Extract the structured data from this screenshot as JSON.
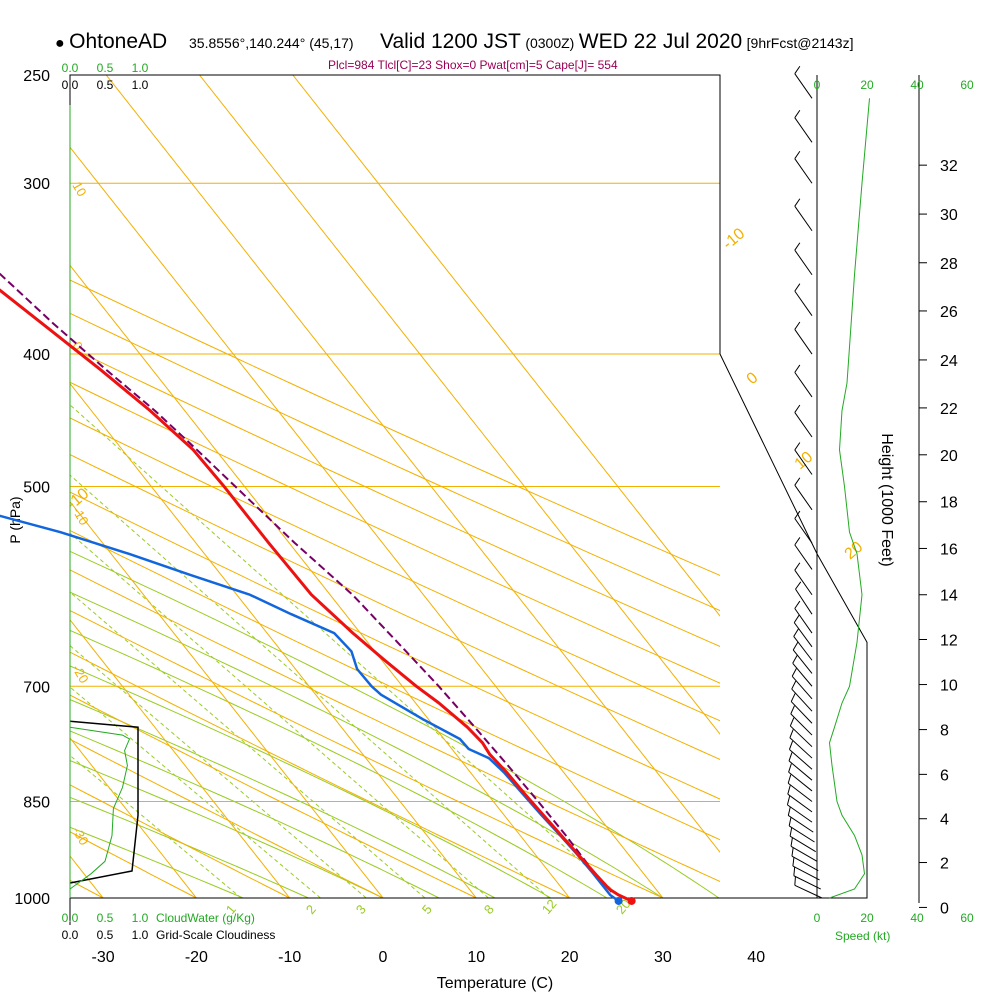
{
  "header": {
    "station": "OhtoneAD",
    "coords": "35.8556°,140.244° (45,17)",
    "valid_prefix": "Valid 1200 JST",
    "valid_utc": "(0300Z)",
    "valid_date": "WED 22 Jul 2020",
    "forecast": "[9hrFcst@2143z]",
    "indices": "Plcl=984 Tlcl[C]=23 Shox=0 Pwat[cm]=5 Cape[J]= 554"
  },
  "colors": {
    "temperature": "#ee1111",
    "dewpoint": "#1166dd",
    "parcel": "#770066",
    "isobar": "#f2b000",
    "dry_adiabat": "#f2b000",
    "moist_adiabat": "#99cc22",
    "mixing_ratio": "#99cc22",
    "cloud": "#22aa22",
    "indices_text": "#990055"
  },
  "chart_data": {
    "type": "skewt",
    "title": "OhtoneAD Valid 1200 JST (0300Z) WED 22 Jul 2020",
    "xlabel": "Temperature (C)",
    "ylabel": "P (hPa)",
    "x_ticks": [
      -30,
      -20,
      -10,
      0,
      10,
      20,
      30,
      40
    ],
    "p_ticks": [
      250,
      300,
      400,
      500,
      700,
      850,
      1000
    ],
    "height_axis": {
      "label": "Height (1000 Feet)",
      "ticks": [
        0,
        2,
        4,
        6,
        8,
        10,
        12,
        14,
        16,
        18,
        20,
        22,
        24,
        26,
        28,
        30,
        32
      ],
      "p_at_tick": [
        1016,
        942,
        875,
        812,
        753,
        698,
        647,
        600,
        555,
        513,
        474,
        438,
        404,
        372,
        343,
        316,
        291
      ]
    },
    "temperature": {
      "name": "Temperature",
      "points": [
        [
          1005,
          26.4
        ],
        [
          995,
          25.5
        ],
        [
          985,
          25.0
        ],
        [
          960,
          24.8
        ],
        [
          930,
          24.6
        ],
        [
          900,
          24.4
        ],
        [
          870,
          24.2
        ],
        [
          840,
          24.0
        ],
        [
          810,
          23.9
        ],
        [
          785,
          23.6
        ],
        [
          770,
          23.8
        ],
        [
          750,
          23.5
        ],
        [
          720,
          22.5
        ],
        [
          700,
          21.5
        ],
        [
          670,
          20.3
        ],
        [
          640,
          19.2
        ],
        [
          600,
          18.0
        ],
        [
          550,
          17.8
        ],
        [
          500,
          17.8
        ],
        [
          470,
          17.6
        ],
        [
          440,
          16.3
        ],
        [
          410,
          14.4
        ],
        [
          380,
          12.1
        ],
        [
          350,
          9.6
        ],
        [
          320,
          7.1
        ],
        [
          300,
          5.2
        ],
        [
          280,
          3.1
        ],
        [
          265,
          1.9
        ]
      ]
    },
    "dewpoint": {
      "name": "Dewpoint",
      "points": [
        [
          1005,
          25.0
        ],
        [
          995,
          24.6
        ],
        [
          960,
          24.6
        ],
        [
          930,
          24.5
        ],
        [
          900,
          24.3
        ],
        [
          870,
          24.0
        ],
        [
          840,
          23.8
        ],
        [
          810,
          23.6
        ],
        [
          790,
          23.2
        ],
        [
          778,
          21.8
        ],
        [
          765,
          21.7
        ],
        [
          740,
          19.4
        ],
        [
          710,
          17.0
        ],
        [
          700,
          16.7
        ],
        [
          680,
          16.6
        ],
        [
          660,
          17.5
        ],
        [
          640,
          17.2
        ],
        [
          620,
          14.2
        ],
        [
          600,
          11.4
        ],
        [
          580,
          6.6
        ],
        [
          560,
          1.9
        ],
        [
          540,
          -3.6
        ],
        [
          520,
          -10.6
        ],
        [
          500,
          -14.8
        ],
        [
          480,
          -20.0
        ],
        [
          460,
          -21.1
        ],
        [
          440,
          -21.4
        ],
        [
          400,
          -19.1
        ],
        [
          350,
          -13.9
        ],
        [
          300,
          -7.6
        ],
        [
          280,
          -5.6
        ],
        [
          265,
          -3.7
        ]
      ]
    },
    "parcel": {
      "name": "Parcel",
      "points": [
        [
          990,
          25.0
        ],
        [
          950,
          24.8
        ],
        [
          900,
          24.9
        ],
        [
          850,
          24.8
        ],
        [
          800,
          24.6
        ],
        [
          750,
          24.3
        ],
        [
          700,
          23.9
        ],
        [
          650,
          23.2
        ],
        [
          600,
          22.4
        ],
        [
          550,
          20.6
        ],
        [
          500,
          19.0
        ],
        [
          470,
          18.0
        ],
        [
          440,
          16.8
        ],
        [
          410,
          15.0
        ],
        [
          380,
          13.3
        ],
        [
          350,
          11.8
        ],
        [
          320,
          9.6
        ],
        [
          300,
          8.0
        ],
        [
          280,
          6.1
        ],
        [
          265,
          4.4
        ]
      ]
    },
    "surface_marks": [
      {
        "name": "surface temperature",
        "p": 1005,
        "t": 26.4
      },
      {
        "name": "surface dewpoint",
        "p": 1005,
        "t": 25.0
      }
    ],
    "dry_adiabats_c": [
      -10,
      0,
      10,
      20,
      30
    ],
    "dry_adiabat_labels": [
      "-10",
      "0",
      "10",
      "20",
      "30"
    ],
    "mixing_ratio_labels": [
      "1",
      "2",
      "3",
      "5",
      "8",
      "12",
      "20"
    ],
    "mixing_ratio_x_at_1000hpa": [
      -15.2,
      -6.7,
      -1.8,
      4.5,
      11.3,
      17.8,
      25.6
    ],
    "cloud_panel": {
      "label": "CloudWater (g/Kg)",
      "label2": "Grid-Scale Cloudiness",
      "scale_top": [
        "0.0",
        "0.5",
        "1.0"
      ],
      "scale_bottom": [
        "0.0",
        "0.5",
        "1.0"
      ],
      "cloudiness_range": [
        975,
        750
      ],
      "cloudwater_profile": [
        [
          985,
          0.0
        ],
        [
          960,
          0.3
        ],
        [
          940,
          0.5
        ],
        [
          920,
          0.55
        ],
        [
          900,
          0.6
        ],
        [
          860,
          0.62
        ],
        [
          830,
          0.75
        ],
        [
          800,
          0.82
        ],
        [
          780,
          0.78
        ],
        [
          765,
          0.85
        ],
        [
          760,
          0.75
        ],
        [
          750,
          0.0
        ]
      ]
    },
    "wind_panel": {
      "label": "Speed (kt)",
      "scale_top": [
        "0",
        "20",
        "40",
        "60"
      ],
      "scale_bottom": [
        "0",
        "20",
        "40",
        "60"
      ],
      "speed_profile_kt": [
        [
          1000,
          5
        ],
        [
          985,
          15
        ],
        [
          960,
          19
        ],
        [
          930,
          18
        ],
        [
          900,
          15
        ],
        [
          870,
          10
        ],
        [
          850,
          8
        ],
        [
          800,
          6
        ],
        [
          770,
          5
        ],
        [
          750,
          7
        ],
        [
          720,
          10
        ],
        [
          700,
          13
        ],
        [
          650,
          16
        ],
        [
          600,
          18
        ],
        [
          560,
          16
        ],
        [
          540,
          13
        ],
        [
          500,
          11
        ],
        [
          470,
          9
        ],
        [
          440,
          10
        ],
        [
          420,
          12
        ],
        [
          350,
          15
        ],
        [
          300,
          18
        ],
        [
          260,
          21
        ]
      ],
      "barb_pressures": [
        1000,
        985,
        970,
        955,
        940,
        925,
        910,
        895,
        880,
        865,
        850,
        835,
        820,
        805,
        790,
        775,
        760,
        745,
        730,
        715,
        700,
        685,
        670,
        655,
        640,
        620,
        600,
        575,
        550,
        520,
        490,
        460,
        430,
        400,
        375,
        350,
        325,
        300,
        280,
        260
      ]
    }
  }
}
